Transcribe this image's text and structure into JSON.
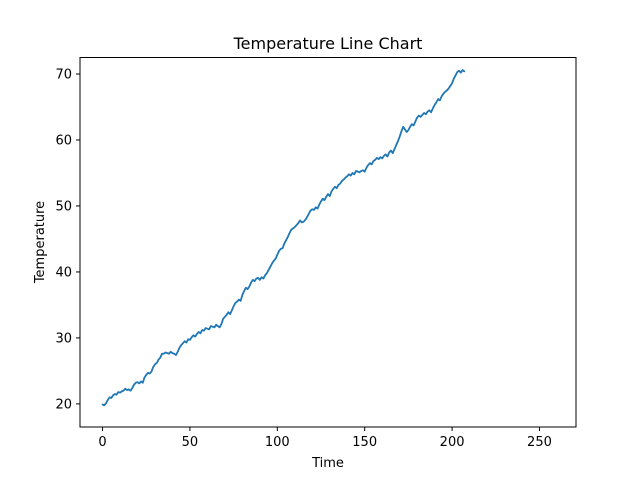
{
  "chart_data": {
    "type": "line",
    "title": "Temperature Line Chart",
    "xlabel": "Time",
    "ylabel": "Temperature",
    "xlim": [
      -12.9,
      270.9
    ],
    "ylim": [
      16.5,
      72.5
    ],
    "xticks": [
      0,
      50,
      100,
      150,
      200,
      250
    ],
    "yticks": [
      20,
      30,
      40,
      50,
      60,
      70
    ],
    "grid": false,
    "line_color": "#1f77b4",
    "series": [
      {
        "points": [
          [
            0,
            19.9
          ],
          [
            1,
            19.8
          ],
          [
            2,
            20.1
          ],
          [
            3,
            20.6
          ],
          [
            4,
            21.0
          ],
          [
            5,
            20.9
          ],
          [
            6,
            21.3
          ],
          [
            7,
            21.5
          ],
          [
            8,
            21.4
          ],
          [
            9,
            21.8
          ],
          [
            10,
            21.7
          ],
          [
            11,
            21.9
          ],
          [
            12,
            22.0
          ],
          [
            13,
            22.3
          ],
          [
            14,
            22.1
          ],
          [
            15,
            22.2
          ],
          [
            16,
            22.0
          ],
          [
            17,
            22.4
          ],
          [
            18,
            22.9
          ],
          [
            19,
            23.2
          ],
          [
            20,
            23.3
          ],
          [
            21,
            23.1
          ],
          [
            22,
            23.4
          ],
          [
            23,
            23.2
          ],
          [
            24,
            24.0
          ],
          [
            25,
            24.4
          ],
          [
            26,
            24.7
          ],
          [
            27,
            24.6
          ],
          [
            28,
            24.9
          ],
          [
            29,
            25.6
          ],
          [
            30,
            26.0
          ],
          [
            31,
            26.2
          ],
          [
            32,
            26.7
          ],
          [
            33,
            27.0
          ],
          [
            34,
            27.6
          ],
          [
            35,
            27.6
          ],
          [
            36,
            27.8
          ],
          [
            37,
            27.7
          ],
          [
            38,
            27.6
          ],
          [
            39,
            27.9
          ],
          [
            40,
            27.7
          ],
          [
            41,
            27.6
          ],
          [
            42,
            27.4
          ],
          [
            43,
            27.9
          ],
          [
            44,
            28.5
          ],
          [
            45,
            28.9
          ],
          [
            46,
            29.2
          ],
          [
            47,
            29.5
          ],
          [
            48,
            29.3
          ],
          [
            49,
            29.8
          ],
          [
            50,
            29.7
          ],
          [
            51,
            30.1
          ],
          [
            52,
            30.4
          ],
          [
            53,
            30.2
          ],
          [
            54,
            30.6
          ],
          [
            55,
            30.9
          ],
          [
            56,
            30.7
          ],
          [
            57,
            31.2
          ],
          [
            58,
            31.1
          ],
          [
            59,
            31.5
          ],
          [
            60,
            31.4
          ],
          [
            61,
            31.3
          ],
          [
            62,
            31.8
          ],
          [
            63,
            31.7
          ],
          [
            64,
            31.6
          ],
          [
            65,
            32.0
          ],
          [
            66,
            31.8
          ],
          [
            67,
            31.6
          ],
          [
            68,
            32.1
          ],
          [
            69,
            32.9
          ],
          [
            70,
            33.2
          ],
          [
            71,
            33.5
          ],
          [
            72,
            33.9
          ],
          [
            73,
            33.6
          ],
          [
            74,
            34.2
          ],
          [
            75,
            34.8
          ],
          [
            76,
            35.3
          ],
          [
            77,
            35.5
          ],
          [
            78,
            35.8
          ],
          [
            79,
            35.6
          ],
          [
            80,
            36.5
          ],
          [
            81,
            37.1
          ],
          [
            82,
            37.6
          ],
          [
            83,
            37.4
          ],
          [
            84,
            37.8
          ],
          [
            85,
            38.4
          ],
          [
            86,
            38.8
          ],
          [
            87,
            38.6
          ],
          [
            88,
            39.0
          ],
          [
            89,
            39.1
          ],
          [
            90,
            38.8
          ],
          [
            91,
            39.2
          ],
          [
            92,
            39.0
          ],
          [
            93,
            39.5
          ],
          [
            94,
            39.8
          ],
          [
            95,
            40.3
          ],
          [
            96,
            40.8
          ],
          [
            97,
            41.3
          ],
          [
            98,
            41.7
          ],
          [
            99,
            42.0
          ],
          [
            100,
            42.6
          ],
          [
            101,
            43.2
          ],
          [
            102,
            43.5
          ],
          [
            103,
            43.6
          ],
          [
            104,
            44.3
          ],
          [
            105,
            44.8
          ],
          [
            106,
            45.3
          ],
          [
            107,
            45.9
          ],
          [
            108,
            46.4
          ],
          [
            109,
            46.6
          ],
          [
            110,
            46.8
          ],
          [
            111,
            47.1
          ],
          [
            112,
            47.4
          ],
          [
            113,
            47.8
          ],
          [
            114,
            47.5
          ],
          [
            115,
            47.6
          ],
          [
            116,
            47.9
          ],
          [
            117,
            48.3
          ],
          [
            118,
            48.8
          ],
          [
            119,
            49.3
          ],
          [
            120,
            49.5
          ],
          [
            121,
            49.4
          ],
          [
            122,
            49.8
          ],
          [
            123,
            49.6
          ],
          [
            124,
            50.2
          ],
          [
            125,
            50.7
          ],
          [
            126,
            51.1
          ],
          [
            127,
            50.9
          ],
          [
            128,
            51.4
          ],
          [
            129,
            51.8
          ],
          [
            130,
            51.5
          ],
          [
            131,
            52.2
          ],
          [
            132,
            52.6
          ],
          [
            133,
            52.9
          ],
          [
            134,
            52.7
          ],
          [
            135,
            53.2
          ],
          [
            136,
            53.4
          ],
          [
            137,
            53.8
          ],
          [
            138,
            54.0
          ],
          [
            139,
            54.3
          ],
          [
            140,
            54.5
          ],
          [
            141,
            54.8
          ],
          [
            142,
            54.6
          ],
          [
            143,
            55.0
          ],
          [
            144,
            54.8
          ],
          [
            145,
            55.3
          ],
          [
            146,
            55.2
          ],
          [
            147,
            55.1
          ],
          [
            148,
            55.3
          ],
          [
            149,
            55.4
          ],
          [
            150,
            55.2
          ],
          [
            151,
            55.8
          ],
          [
            152,
            56.2
          ],
          [
            153,
            56.5
          ],
          [
            154,
            56.3
          ],
          [
            155,
            56.8
          ],
          [
            156,
            57.0
          ],
          [
            157,
            57.3
          ],
          [
            158,
            57.1
          ],
          [
            159,
            57.4
          ],
          [
            160,
            57.2
          ],
          [
            161,
            57.6
          ],
          [
            162,
            57.8
          ],
          [
            163,
            57.5
          ],
          [
            164,
            58.1
          ],
          [
            165,
            58.4
          ],
          [
            166,
            58.0
          ],
          [
            167,
            58.6
          ],
          [
            168,
            59.2
          ],
          [
            169,
            59.8
          ],
          [
            170,
            60.5
          ],
          [
            171,
            61.3
          ],
          [
            172,
            62.0
          ],
          [
            173,
            61.6
          ],
          [
            174,
            61.2
          ],
          [
            175,
            61.5
          ],
          [
            176,
            62.0
          ],
          [
            177,
            62.4
          ],
          [
            178,
            62.2
          ],
          [
            179,
            62.8
          ],
          [
            180,
            63.4
          ],
          [
            181,
            63.7
          ],
          [
            182,
            63.5
          ],
          [
            183,
            63.8
          ],
          [
            184,
            64.1
          ],
          [
            185,
            63.9
          ],
          [
            186,
            64.3
          ],
          [
            187,
            64.5
          ],
          [
            188,
            64.2
          ],
          [
            189,
            64.8
          ],
          [
            190,
            65.3
          ],
          [
            191,
            65.7
          ],
          [
            192,
            66.2
          ],
          [
            193,
            66.0
          ],
          [
            194,
            66.6
          ],
          [
            195,
            67.0
          ],
          [
            196,
            67.3
          ],
          [
            197,
            67.5
          ],
          [
            198,
            67.8
          ],
          [
            199,
            68.2
          ],
          [
            200,
            68.6
          ],
          [
            201,
            69.3
          ],
          [
            202,
            69.8
          ],
          [
            203,
            70.3
          ],
          [
            204,
            70.5
          ],
          [
            205,
            70.2
          ],
          [
            206,
            70.6
          ],
          [
            207,
            70.4
          ]
        ]
      }
    ]
  }
}
